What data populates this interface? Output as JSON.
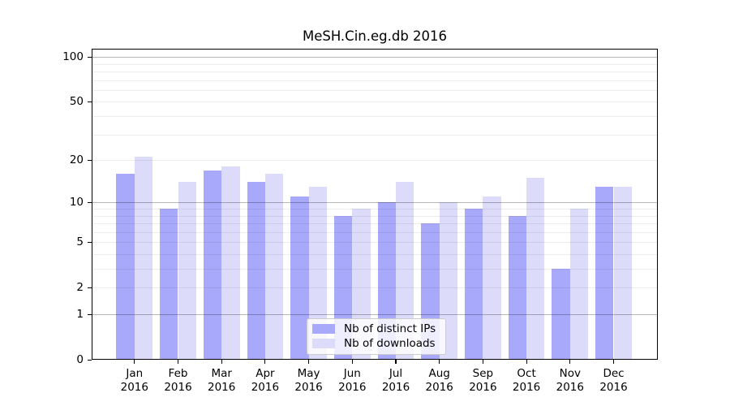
{
  "figure": {
    "title": "MeSH.Cin.eg.db 2016"
  },
  "chart_data": {
    "type": "bar",
    "title": "MeSH.Cin.eg.db 2016",
    "categories": [
      "Jan 2016",
      "Feb 2016",
      "Mar 2016",
      "Apr 2016",
      "May 2016",
      "Jun 2016",
      "Jul 2016",
      "Aug 2016",
      "Sep 2016",
      "Oct 2016",
      "Nov 2016",
      "Dec 2016"
    ],
    "series": [
      {
        "name": "Nb of distinct IPs",
        "color": "#a9a9fb",
        "values": [
          16,
          9,
          17,
          14,
          11,
          8,
          10,
          7,
          9,
          8,
          3,
          13
        ]
      },
      {
        "name": "Nb of downloads",
        "color": "#dcdcfa",
        "values": [
          21,
          14,
          18,
          16,
          13,
          9,
          14,
          10,
          11,
          15,
          9,
          13
        ]
      }
    ],
    "xlabel": "",
    "ylabel": "",
    "yscale": "log1p",
    "ylim": [
      0,
      114
    ],
    "yticks": [
      0,
      1,
      2,
      5,
      10,
      20,
      50,
      100
    ],
    "gridlines": {
      "major": [
        1,
        10,
        100
      ],
      "minor": [
        2,
        3,
        4,
        5,
        6,
        7,
        8,
        9,
        20,
        30,
        40,
        50,
        60,
        70,
        80,
        90
      ]
    },
    "grid": "on",
    "legend_position": "bottom-center"
  }
}
